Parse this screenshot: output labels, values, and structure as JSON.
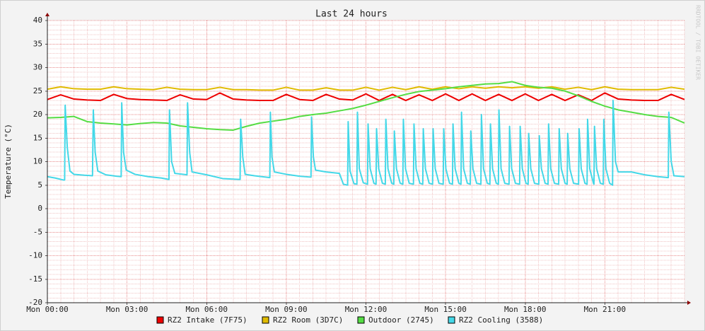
{
  "chart_data": {
    "type": "line",
    "title": "Last 24 hours",
    "y_label": "Temperature (°C)",
    "watermark": "RRDTOOL / TOBI OETIKER",
    "grid": true,
    "xlim": [
      0,
      24
    ],
    "xticks": [
      {
        "value": 0,
        "label": "Mon 00:00"
      },
      {
        "value": 3,
        "label": "Mon 03:00"
      },
      {
        "value": 6,
        "label": "Mon 06:00"
      },
      {
        "value": 9,
        "label": "Mon 09:00"
      },
      {
        "value": 12,
        "label": "Mon 12:00"
      },
      {
        "value": 15,
        "label": "Mon 15:00"
      },
      {
        "value": 18,
        "label": "Mon 18:00"
      },
      {
        "value": 21,
        "label": "Mon 21:00"
      }
    ],
    "ylim": [
      -20,
      40
    ],
    "yticks": [
      -20,
      -15,
      -10,
      -5,
      0,
      5,
      10,
      15,
      20,
      25,
      30,
      35,
      40
    ],
    "x": [
      0,
      0.5,
      1,
      1.5,
      2,
      2.5,
      3,
      3.5,
      4,
      4.5,
      5,
      5.5,
      6,
      6.5,
      7,
      7.5,
      8,
      8.5,
      9,
      9.5,
      10,
      10.5,
      11,
      11.5,
      12,
      12.5,
      13,
      13.5,
      14,
      14.5,
      15,
      15.5,
      16,
      16.5,
      17,
      17.5,
      18,
      18.5,
      19,
      19.5,
      20,
      20.5,
      21,
      21.5,
      22,
      22.5,
      23,
      23.5,
      24
    ],
    "series": [
      {
        "name": "RZ2 Intake (7F75)",
        "color": "#ee0000",
        "values": [
          23.2,
          24.2,
          23.3,
          23.1,
          23.0,
          24.3,
          23.4,
          23.2,
          23.1,
          23.0,
          24.2,
          23.3,
          23.2,
          24.6,
          23.3,
          23.1,
          23.0,
          23.0,
          24.3,
          23.2,
          23.0,
          24.3,
          23.3,
          23.1,
          24.4,
          23.0,
          24.3,
          23.0,
          24.2,
          23.0,
          24.4,
          23.0,
          24.4,
          23.0,
          24.3,
          23.0,
          24.4,
          23.0,
          24.3,
          23.0,
          24.2,
          23.0,
          24.6,
          23.3,
          23.1,
          23.0,
          23.0,
          24.3,
          23.2
        ]
      },
      {
        "name": "RZ2 Room (3D7C)",
        "color": "#e0bb00",
        "values": [
          25.4,
          25.9,
          25.5,
          25.4,
          25.4,
          25.9,
          25.5,
          25.4,
          25.3,
          25.8,
          25.4,
          25.3,
          25.3,
          25.8,
          25.3,
          25.3,
          25.2,
          25.2,
          25.8,
          25.2,
          25.2,
          25.7,
          25.2,
          25.2,
          25.8,
          25.2,
          25.8,
          25.3,
          25.9,
          25.4,
          25.9,
          25.5,
          25.9,
          25.6,
          25.9,
          25.7,
          25.9,
          25.6,
          25.9,
          25.4,
          25.8,
          25.3,
          25.9,
          25.4,
          25.3,
          25.3,
          25.3,
          25.8,
          25.4
        ]
      },
      {
        "name": "Outdoor (2745)",
        "color": "#55dd44",
        "values": [
          19.3,
          19.4,
          19.6,
          18.5,
          18.2,
          18.0,
          17.8,
          18.1,
          18.3,
          18.2,
          17.6,
          17.3,
          17.0,
          16.8,
          16.7,
          17.5,
          18.2,
          18.6,
          19.0,
          19.6,
          20.0,
          20.3,
          20.8,
          21.3,
          22.0,
          22.8,
          23.6,
          24.3,
          24.9,
          25.2,
          25.5,
          25.9,
          26.2,
          26.5,
          26.6,
          27.0,
          26.2,
          25.8,
          25.6,
          25.0,
          24.0,
          22.8,
          21.8,
          21.0,
          20.5,
          20.0,
          19.6,
          19.4,
          18.2
        ]
      },
      {
        "name": "RZ2 Cooling (3588)",
        "color": "#44d8e8",
        "x": [
          0,
          0.3,
          0.6,
          0.65,
          0.67,
          0.75,
          0.85,
          1.0,
          1.4,
          1.7,
          1.73,
          1.8,
          1.9,
          2.2,
          2.6,
          2.78,
          2.8,
          2.87,
          2.97,
          3.3,
          3.8,
          4.3,
          4.58,
          4.6,
          4.68,
          4.8,
          5.26,
          5.28,
          5.36,
          5.45,
          6.0,
          6.6,
          7.26,
          7.28,
          7.36,
          7.45,
          7.8,
          8.38,
          8.4,
          8.46,
          8.55,
          9.0,
          9.5,
          9.93,
          9.95,
          10.02,
          10.1,
          10.5,
          11.0,
          11.15,
          11.31,
          11.33,
          11.4,
          11.55,
          11.66,
          11.68,
          11.75,
          11.9,
          12.06,
          12.08,
          12.16,
          12.3,
          12.38,
          12.4,
          12.48,
          12.62,
          12.73,
          12.75,
          12.83,
          12.97,
          13.05,
          13.07,
          13.15,
          13.29,
          13.39,
          13.41,
          13.49,
          13.63,
          13.79,
          13.81,
          13.89,
          14.03,
          14.14,
          14.16,
          14.24,
          14.38,
          14.51,
          14.53,
          14.61,
          14.75,
          14.91,
          14.93,
          15.01,
          15.15,
          15.26,
          15.28,
          15.36,
          15.5,
          15.58,
          15.6,
          15.68,
          15.82,
          15.93,
          15.95,
          16.03,
          16.17,
          16.33,
          16.35,
          16.43,
          16.57,
          16.67,
          16.69,
          16.77,
          16.91,
          16.99,
          17.01,
          17.09,
          17.23,
          17.39,
          17.41,
          17.49,
          17.63,
          17.79,
          17.81,
          17.89,
          18.03,
          18.11,
          18.13,
          18.21,
          18.35,
          18.51,
          18.53,
          18.61,
          18.75,
          18.86,
          18.88,
          18.96,
          19.1,
          19.26,
          19.28,
          19.36,
          19.5,
          19.58,
          19.6,
          19.68,
          19.82,
          20.01,
          20.03,
          20.11,
          20.25,
          20.33,
          20.35,
          20.43,
          20.57,
          20.59,
          20.61,
          20.69,
          20.83,
          20.94,
          20.96,
          21.04,
          21.18,
          21.29,
          21.31,
          21.4,
          21.5,
          22.0,
          22.5,
          23.0,
          23.39,
          23.41,
          23.5,
          23.6,
          24
        ],
        "values": [
          6.8,
          6.5,
          6.1,
          6.1,
          22,
          13,
          8,
          7.3,
          7.1,
          7.0,
          21,
          12,
          8,
          7.2,
          6.9,
          6.8,
          22.5,
          12,
          8.2,
          7.3,
          6.8,
          6.5,
          6.2,
          21,
          10,
          7.5,
          7.2,
          22.5,
          12,
          7.8,
          7.2,
          6.4,
          6.2,
          19,
          11,
          7.3,
          7.0,
          6.6,
          20.5,
          11,
          7.8,
          7.3,
          6.9,
          6.7,
          19.5,
          11,
          8.2,
          7.8,
          7.5,
          5.2,
          5.0,
          18.5,
          8,
          5.3,
          5.2,
          20.5,
          8.5,
          5.5,
          5.2,
          18,
          8.5,
          5.4,
          5.2,
          17,
          8.5,
          5.4,
          5.2,
          19,
          8.5,
          5.4,
          5.2,
          16.5,
          8.5,
          5.4,
          5.2,
          19,
          8.5,
          5.4,
          5.2,
          18,
          8.5,
          5.4,
          5.2,
          17,
          8.5,
          5.4,
          5.2,
          17,
          8.5,
          5.4,
          5.2,
          17,
          8.5,
          5.4,
          5.2,
          18,
          8.5,
          5.4,
          5.2,
          20.5,
          8.5,
          5.4,
          5.2,
          16.5,
          8.5,
          5.4,
          5.2,
          20,
          8.5,
          5.4,
          5.2,
          18,
          8.5,
          5.4,
          5.2,
          21,
          8.5,
          5.4,
          5.2,
          17.5,
          8.5,
          5.4,
          5.2,
          17.5,
          8.5,
          5.4,
          5.2,
          16,
          8.5,
          5.4,
          5.2,
          15.5,
          8.5,
          5.4,
          5.2,
          18,
          8.5,
          5.4,
          5.2,
          17,
          8.5,
          5.4,
          5.2,
          16,
          8.5,
          5.4,
          5.2,
          17,
          8.5,
          5.4,
          5.2,
          19,
          8.5,
          5.4,
          5.2,
          17.5,
          8.5,
          5.4,
          5.2,
          19,
          8.5,
          5.4,
          5.0,
          23,
          10,
          7.8,
          7.8,
          7.2,
          6.8,
          6.6,
          20.5,
          10,
          7.0,
          6.8
        ]
      }
    ]
  }
}
